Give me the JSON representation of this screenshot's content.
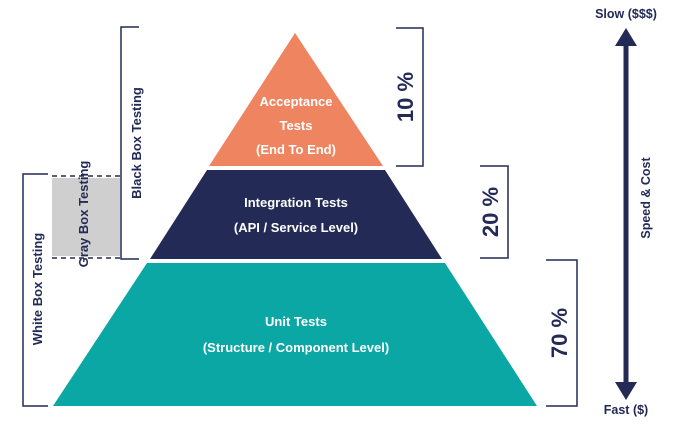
{
  "colors": {
    "acceptance": "#ef8560",
    "integration": "#232a56",
    "unit": "#0aa7a5",
    "dark": "#232a56",
    "gray_box": "#cfcfcf"
  },
  "tiers": [
    {
      "id": "acceptance",
      "lines": [
        "Acceptance",
        "Tests",
        "(End To End)"
      ],
      "percent": "10 %"
    },
    {
      "id": "integration",
      "lines": [
        "Integration Tests",
        "(API / Service Level)"
      ],
      "percent": "20 %"
    },
    {
      "id": "unit",
      "lines": [
        "Unit Tests",
        "(Structure / Component Level)"
      ],
      "percent": "70 %"
    }
  ],
  "testing_types": {
    "black_box": "Black Box Testing",
    "gray_box": "Gray Box Testing",
    "white_box": "White Box Testing"
  },
  "speed_axis": {
    "top": "Slow ($$$)",
    "bottom": "Fast ($)",
    "label": "Speed & Cost"
  }
}
